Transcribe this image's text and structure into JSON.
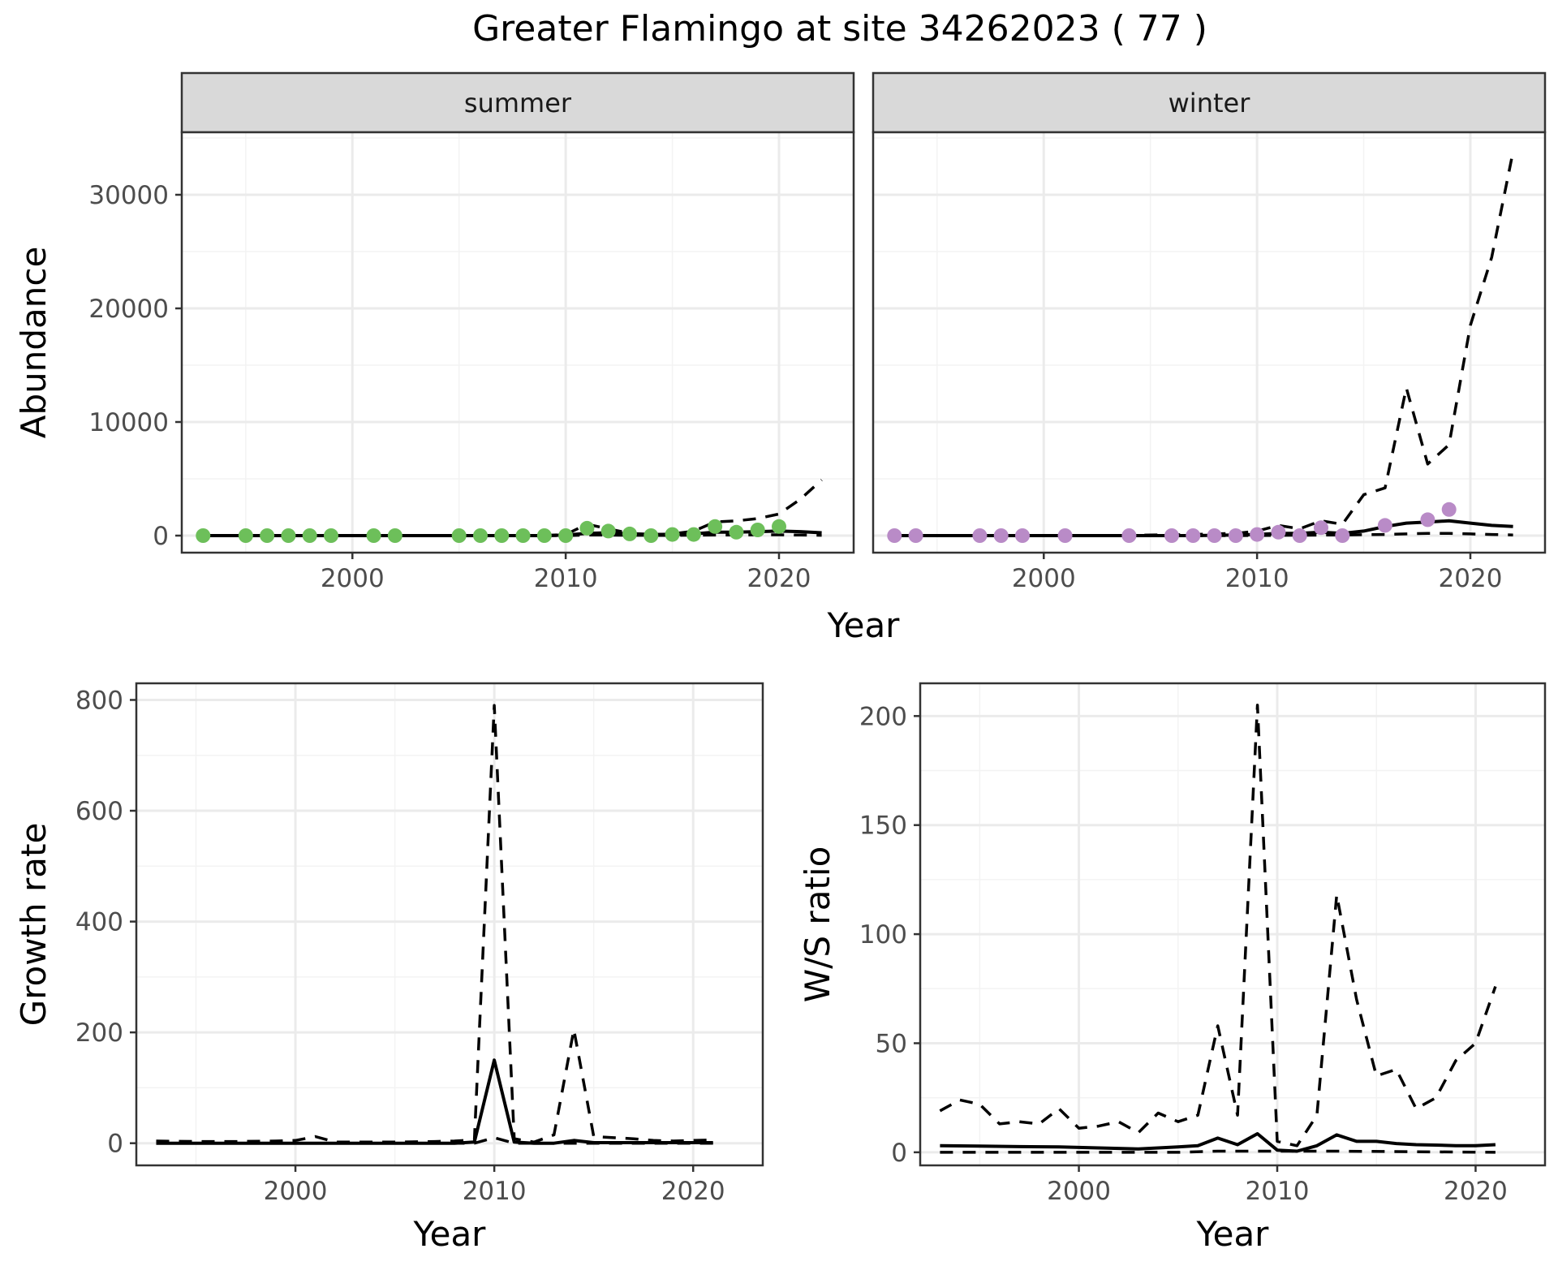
{
  "title": "Greater Flamingo at site 34262023 ( 77 )",
  "colors": {
    "summer_points": "#6dbf5a",
    "winter_points": "#b98bc7",
    "lines": "#000000",
    "strip": "#d9d9d9"
  },
  "chart_data": [
    {
      "id": "abundance",
      "type": "line",
      "facets": [
        "summer",
        "winter"
      ],
      "xlabel": "Year",
      "ylabel": "Abundance",
      "xlim": [
        1992,
        2023.5
      ],
      "ylim": [
        -1500,
        35500
      ],
      "xticks": [
        2000,
        2010,
        2020
      ],
      "yticks": [
        0,
        10000,
        20000,
        30000
      ],
      "grid": true,
      "panels": [
        {
          "facet": "summer",
          "points": [
            [
              1993,
              0
            ],
            [
              1995,
              0
            ],
            [
              1996,
              0
            ],
            [
              1997,
              0
            ],
            [
              1998,
              0
            ],
            [
              1999,
              0
            ],
            [
              2001,
              0
            ],
            [
              2002,
              0
            ],
            [
              2005,
              0
            ],
            [
              2006,
              0
            ],
            [
              2007,
              0
            ],
            [
              2008,
              0
            ],
            [
              2009,
              0
            ],
            [
              2010,
              0
            ],
            [
              2011,
              650
            ],
            [
              2012,
              400
            ],
            [
              2013,
              150
            ],
            [
              2014,
              0
            ],
            [
              2015,
              100
            ],
            [
              2016,
              100
            ],
            [
              2017,
              800
            ],
            [
              2018,
              300
            ],
            [
              2019,
              500
            ],
            [
              2020,
              800
            ]
          ],
          "estimate": [
            [
              1993,
              0
            ],
            [
              1995,
              0
            ],
            [
              1997,
              0
            ],
            [
              1999,
              0
            ],
            [
              2001,
              0
            ],
            [
              2003,
              0
            ],
            [
              2005,
              0
            ],
            [
              2007,
              0
            ],
            [
              2009,
              0
            ],
            [
              2010,
              50
            ],
            [
              2011,
              200
            ],
            [
              2012,
              250
            ],
            [
              2013,
              150
            ],
            [
              2014,
              100
            ],
            [
              2015,
              100
            ],
            [
              2016,
              150
            ],
            [
              2017,
              300
            ],
            [
              2018,
              300
            ],
            [
              2019,
              350
            ],
            [
              2020,
              400
            ],
            [
              2021,
              350
            ],
            [
              2022,
              250
            ]
          ],
          "upper": [
            [
              1993,
              0
            ],
            [
              1999,
              0
            ],
            [
              2005,
              0
            ],
            [
              2009,
              0
            ],
            [
              2010,
              100
            ],
            [
              2011,
              1000
            ],
            [
              2012,
              600
            ],
            [
              2013,
              200
            ],
            [
              2014,
              100
            ],
            [
              2015,
              150
            ],
            [
              2016,
              400
            ],
            [
              2017,
              1200
            ],
            [
              2018,
              1300
            ],
            [
              2019,
              1500
            ],
            [
              2020,
              1900
            ],
            [
              2021,
              3200
            ],
            [
              2022,
              4900
            ]
          ],
          "lower": [
            [
              1993,
              0
            ],
            [
              2009,
              0
            ],
            [
              2010,
              0
            ],
            [
              2011,
              50
            ],
            [
              2012,
              50
            ],
            [
              2013,
              30
            ],
            [
              2014,
              20
            ],
            [
              2015,
              20
            ],
            [
              2016,
              40
            ],
            [
              2017,
              60
            ],
            [
              2018,
              60
            ],
            [
              2019,
              70
            ],
            [
              2020,
              70
            ],
            [
              2021,
              50
            ],
            [
              2022,
              30
            ]
          ]
        },
        {
          "facet": "winter",
          "points": [
            [
              1993,
              0
            ],
            [
              1994,
              0
            ],
            [
              1997,
              0
            ],
            [
              1998,
              0
            ],
            [
              1999,
              0
            ],
            [
              2001,
              0
            ],
            [
              2004,
              0
            ],
            [
              2006,
              0
            ],
            [
              2007,
              0
            ],
            [
              2008,
              0
            ],
            [
              2009,
              0
            ],
            [
              2010,
              100
            ],
            [
              2011,
              300
            ],
            [
              2012,
              0
            ],
            [
              2013,
              700
            ],
            [
              2014,
              0
            ],
            [
              2016,
              900
            ],
            [
              2018,
              1400
            ],
            [
              2019,
              2300
            ]
          ],
          "estimate": [
            [
              1993,
              0
            ],
            [
              1995,
              0
            ],
            [
              1997,
              0
            ],
            [
              1999,
              0
            ],
            [
              2001,
              0
            ],
            [
              2003,
              0
            ],
            [
              2005,
              0
            ],
            [
              2007,
              0
            ],
            [
              2009,
              50
            ],
            [
              2010,
              100
            ],
            [
              2011,
              200
            ],
            [
              2012,
              200
            ],
            [
              2013,
              300
            ],
            [
              2014,
              200
            ],
            [
              2015,
              400
            ],
            [
              2016,
              800
            ],
            [
              2017,
              1100
            ],
            [
              2018,
              1200
            ],
            [
              2019,
              1300
            ],
            [
              2020,
              1100
            ],
            [
              2021,
              900
            ],
            [
              2022,
              800
            ]
          ],
          "upper": [
            [
              1993,
              0
            ],
            [
              2003,
              0
            ],
            [
              2007,
              100
            ],
            [
              2009,
              200
            ],
            [
              2010,
              400
            ],
            [
              2011,
              900
            ],
            [
              2012,
              600
            ],
            [
              2013,
              1300
            ],
            [
              2014,
              1000
            ],
            [
              2015,
              3600
            ],
            [
              2016,
              4200
            ],
            [
              2017,
              13000
            ],
            [
              2018,
              6300
            ],
            [
              2019,
              8000
            ],
            [
              2020,
              18500
            ],
            [
              2021,
              24500
            ],
            [
              2022,
              33800
            ]
          ],
          "lower": [
            [
              1993,
              0
            ],
            [
              2009,
              0
            ],
            [
              2011,
              20
            ],
            [
              2013,
              50
            ],
            [
              2014,
              50
            ],
            [
              2015,
              80
            ],
            [
              2016,
              100
            ],
            [
              2017,
              150
            ],
            [
              2018,
              200
            ],
            [
              2019,
              200
            ],
            [
              2020,
              150
            ],
            [
              2021,
              100
            ],
            [
              2022,
              60
            ]
          ]
        }
      ]
    },
    {
      "id": "growth",
      "type": "line",
      "xlabel": "Year",
      "ylabel": "Growth rate",
      "xlim": [
        1992,
        2023.5
      ],
      "ylim": [
        -40,
        830
      ],
      "xticks": [
        2000,
        2010,
        2020
      ],
      "yticks": [
        0,
        200,
        400,
        600,
        800
      ],
      "grid": true,
      "estimate": [
        [
          1993,
          0
        ],
        [
          1995,
          0
        ],
        [
          1997,
          0
        ],
        [
          1999,
          0
        ],
        [
          2001,
          0
        ],
        [
          2003,
          0
        ],
        [
          2005,
          0
        ],
        [
          2007,
          0
        ],
        [
          2008,
          0
        ],
        [
          2009,
          2
        ],
        [
          2010,
          150
        ],
        [
          2011,
          2
        ],
        [
          2012,
          0
        ],
        [
          2013,
          0
        ],
        [
          2014,
          5
        ],
        [
          2015,
          1
        ],
        [
          2016,
          1
        ],
        [
          2017,
          1
        ],
        [
          2018,
          1
        ],
        [
          2019,
          1
        ],
        [
          2020,
          1
        ],
        [
          2021,
          1
        ]
      ],
      "upper": [
        [
          1993,
          4
        ],
        [
          1995,
          3
        ],
        [
          1997,
          3
        ],
        [
          1999,
          4
        ],
        [
          2000,
          5
        ],
        [
          2001,
          12
        ],
        [
          2002,
          2
        ],
        [
          2003,
          2
        ],
        [
          2005,
          2
        ],
        [
          2007,
          3
        ],
        [
          2008,
          4
        ],
        [
          2009,
          6
        ],
        [
          2010,
          790
        ],
        [
          2011,
          8
        ],
        [
          2012,
          2
        ],
        [
          2013,
          15
        ],
        [
          2014,
          205
        ],
        [
          2015,
          12
        ],
        [
          2016,
          10
        ],
        [
          2017,
          8
        ],
        [
          2018,
          5
        ],
        [
          2019,
          4
        ],
        [
          2020,
          5
        ],
        [
          2021,
          6
        ]
      ],
      "lower": [
        [
          1993,
          0
        ],
        [
          2008,
          0
        ],
        [
          2009,
          0
        ],
        [
          2010,
          10
        ],
        [
          2011,
          0
        ],
        [
          2021,
          0
        ]
      ]
    },
    {
      "id": "ratio",
      "type": "line",
      "xlabel": "Year",
      "ylabel": "W/S ratio",
      "xlim": [
        1992,
        2023.5
      ],
      "ylim": [
        -6,
        215
      ],
      "xticks": [
        2000,
        2010,
        2020
      ],
      "yticks": [
        0,
        50,
        100,
        150,
        200
      ],
      "grid": true,
      "estimate": [
        [
          1993,
          3
        ],
        [
          1995,
          2.8
        ],
        [
          1997,
          2.6
        ],
        [
          1999,
          2.5
        ],
        [
          2001,
          2
        ],
        [
          2003,
          1.5
        ],
        [
          2005,
          2.5
        ],
        [
          2006,
          3
        ],
        [
          2007,
          6.5
        ],
        [
          2008,
          3.5
        ],
        [
          2009,
          8.5
        ],
        [
          2010,
          1
        ],
        [
          2011,
          0.5
        ],
        [
          2012,
          3
        ],
        [
          2013,
          8
        ],
        [
          2014,
          5
        ],
        [
          2015,
          5
        ],
        [
          2016,
          4
        ],
        [
          2017,
          3.5
        ],
        [
          2018,
          3.3
        ],
        [
          2019,
          3
        ],
        [
          2020,
          3
        ],
        [
          2021,
          3.5
        ]
      ],
      "upper": [
        [
          1993,
          19
        ],
        [
          1994,
          24
        ],
        [
          1995,
          22
        ],
        [
          1996,
          13
        ],
        [
          1997,
          14
        ],
        [
          1998,
          13
        ],
        [
          1999,
          20
        ],
        [
          2000,
          11
        ],
        [
          2001,
          12
        ],
        [
          2002,
          14
        ],
        [
          2003,
          9
        ],
        [
          2004,
          18
        ],
        [
          2005,
          14
        ],
        [
          2006,
          17
        ],
        [
          2007,
          58
        ],
        [
          2008,
          17
        ],
        [
          2009,
          205
        ],
        [
          2010,
          5
        ],
        [
          2011,
          3
        ],
        [
          2012,
          17
        ],
        [
          2013,
          118
        ],
        [
          2014,
          70
        ],
        [
          2015,
          35
        ],
        [
          2016,
          38
        ],
        [
          2017,
          20
        ],
        [
          2018,
          25
        ],
        [
          2019,
          42
        ],
        [
          2020,
          50
        ],
        [
          2021,
          76
        ]
      ],
      "lower": [
        [
          1993,
          0
        ],
        [
          2005,
          0
        ],
        [
          2007,
          0.5
        ],
        [
          2009,
          0.5
        ],
        [
          2013,
          0.5
        ],
        [
          2021,
          0
        ]
      ]
    }
  ]
}
